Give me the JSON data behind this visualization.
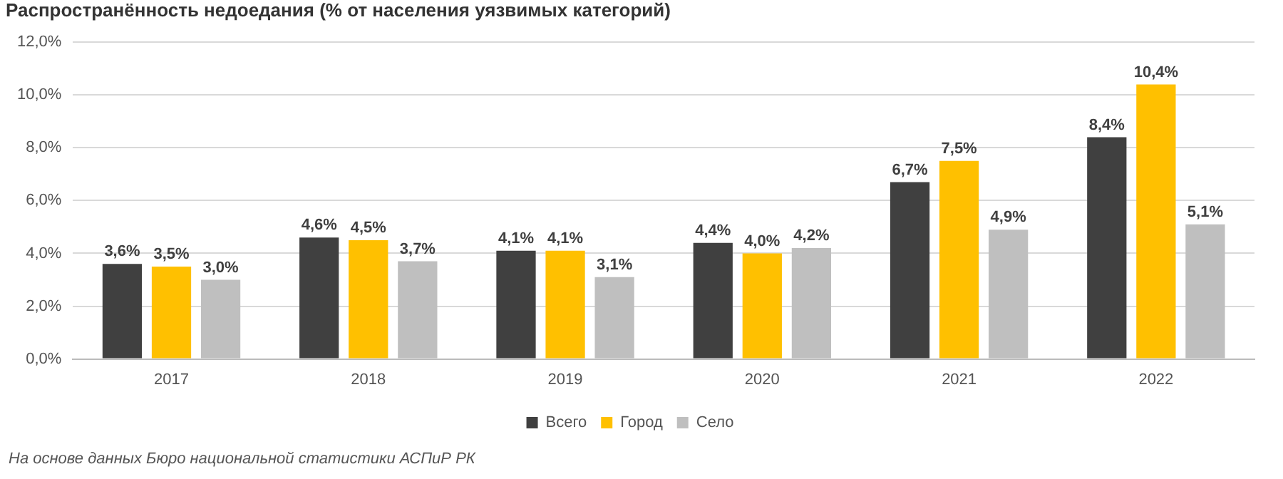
{
  "chart_data": {
    "type": "bar",
    "title": "Распространённость недоедания (% от населения уязвимых категорий)",
    "categories": [
      "2017",
      "2018",
      "2019",
      "2020",
      "2021",
      "2022"
    ],
    "series": [
      {
        "name": "Всего",
        "color": "#404040",
        "values": [
          3.6,
          4.6,
          4.1,
          4.4,
          6.7,
          8.4
        ],
        "value_labels": [
          "3,6%",
          "4,6%",
          "4,1%",
          "4,4%",
          "6,7%",
          "8,4%"
        ]
      },
      {
        "name": "Город",
        "color": "#ffc000",
        "values": [
          3.5,
          4.5,
          4.1,
          4.0,
          7.5,
          10.4
        ],
        "value_labels": [
          "3,5%",
          "4,5%",
          "4,1%",
          "4,0%",
          "7,5%",
          "10,4%"
        ]
      },
      {
        "name": "Село",
        "color": "#bfbfbf",
        "values": [
          3.0,
          3.7,
          3.1,
          4.2,
          4.9,
          5.1
        ],
        "value_labels": [
          "3,0%",
          "3,7%",
          "3,1%",
          "4,2%",
          "4,9%",
          "5,1%"
        ]
      }
    ],
    "ylim": [
      0,
      12
    ],
    "yticks": [
      {
        "value": 0,
        "label": "0,0%"
      },
      {
        "value": 2,
        "label": "2,0%"
      },
      {
        "value": 4,
        "label": "4,0%"
      },
      {
        "value": 6,
        "label": "6,0%"
      },
      {
        "value": 8,
        "label": "8,0%"
      },
      {
        "value": 10,
        "label": "10,0%"
      },
      {
        "value": 12,
        "label": "12,0%"
      }
    ],
    "grid": "y",
    "legend": "bottom",
    "marker": "square",
    "annotations": [
      "На основе данных Бюро национальной статистики АСПиР РК"
    ]
  }
}
